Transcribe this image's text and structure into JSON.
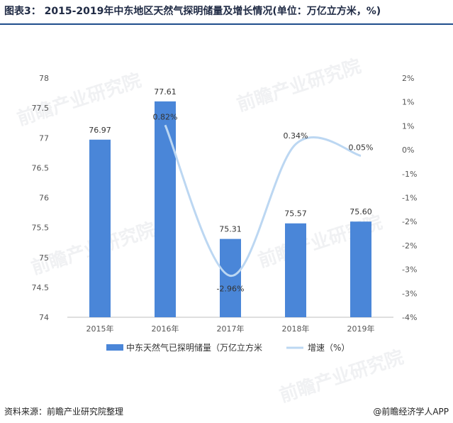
{
  "header": {
    "title": "图表3： 2015-2019年中东地区天然气探明储量及增长情况(单位：万亿立方米，%)"
  },
  "footer": {
    "source": "资料来源：前瞻产业研究院整理",
    "credit": "@前瞻经济学人APP"
  },
  "watermark": {
    "text": "前瞻产业研究院"
  },
  "chart_data": {
    "type": "bar",
    "categories": [
      "2015年",
      "2016年",
      "2017年",
      "2018年",
      "2019年"
    ],
    "series": [
      {
        "name": "中东天然气已探明储量（万亿立方米",
        "type": "bar",
        "values": [
          76.97,
          77.61,
          75.31,
          75.57,
          75.6
        ],
        "labels": [
          "76.97",
          "77.61",
          "75.31",
          "75.57",
          "75.60"
        ],
        "color": "#4a86d8"
      },
      {
        "name": "增速（%）",
        "type": "line",
        "axis": "right",
        "values": [
          null,
          0.82,
          -2.96,
          0.34,
          0.05
        ],
        "labels": [
          "",
          "0.82%",
          "-2.96%",
          "0.34%",
          "0.05%"
        ],
        "color": "#bcd7f2"
      }
    ],
    "y_left": {
      "ylim": [
        74,
        78
      ],
      "ticks": [
        "74",
        "74.5",
        "75",
        "75.5",
        "76",
        "76.5",
        "77",
        "77.5",
        "78"
      ]
    },
    "y_right": {
      "ylim": [
        -4,
        2
      ],
      "ticks": [
        "-4%",
        "-3%",
        "-3%",
        "-2%",
        "-2%",
        "-1%",
        "-1%",
        "0%",
        "1%",
        "1%",
        "2%"
      ]
    },
    "legend_position": "bottom-center",
    "grid": false
  }
}
